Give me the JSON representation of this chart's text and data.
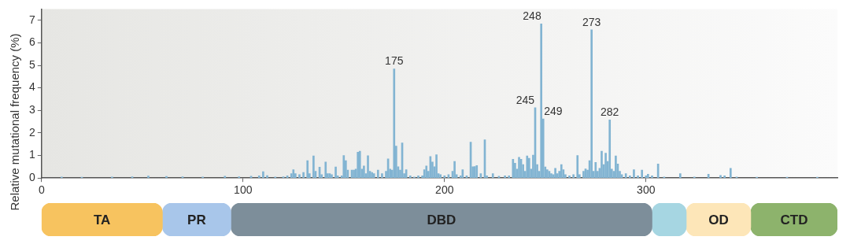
{
  "chart_data": [
    {
      "type": "bar",
      "ylabel": "Relative mutational frequency (%)",
      "x": [
        10,
        20,
        35,
        45,
        53,
        62,
        70,
        80,
        91,
        98,
        104,
        108,
        110,
        112,
        116,
        120,
        122,
        124,
        125,
        126,
        128,
        130,
        132,
        133,
        135,
        136,
        138,
        139,
        141,
        142,
        143,
        144,
        146,
        147,
        149,
        150,
        151,
        152,
        154,
        155,
        156,
        157,
        158,
        159,
        160,
        161,
        162,
        163,
        164,
        165,
        167,
        169,
        171,
        172,
        173,
        174,
        175,
        176,
        177,
        178,
        179,
        180,
        181,
        183,
        185,
        187,
        189,
        190,
        191,
        192,
        193,
        194,
        195,
        196,
        197,
        198,
        200,
        202,
        204,
        205,
        206,
        208,
        209,
        211,
        213,
        214,
        215,
        216,
        218,
        220,
        221,
        224,
        227,
        230,
        232,
        234,
        235,
        236,
        237,
        238,
        239,
        240,
        241,
        242,
        243,
        244,
        245,
        246,
        247,
        248,
        249,
        250,
        251,
        252,
        253,
        254,
        255,
        256,
        257,
        258,
        259,
        260,
        262,
        264,
        266,
        267,
        269,
        270,
        271,
        272,
        273,
        274,
        275,
        276,
        277,
        278,
        279,
        280,
        281,
        282,
        283,
        284,
        285,
        286,
        287,
        288,
        290,
        292,
        294,
        296,
        298,
        300,
        301,
        303,
        306,
        309,
        317,
        324,
        331,
        337,
        339,
        342,
        345,
        355,
        370,
        385
      ],
      "values": [
        0.05,
        0.04,
        0.05,
        0.06,
        0.09,
        0.07,
        0.06,
        0.05,
        0.08,
        0.06,
        0.08,
        0.1,
        0.28,
        0.11,
        0.05,
        0.06,
        0.1,
        0.2,
        0.37,
        0.2,
        0.15,
        0.25,
        0.77,
        0.2,
        0.98,
        0.3,
        0.48,
        0.15,
        0.71,
        0.2,
        0.2,
        0.15,
        0.49,
        0.1,
        0.1,
        1.0,
        0.77,
        0.35,
        0.35,
        0.35,
        0.4,
        1.15,
        1.19,
        0.4,
        0.54,
        0.2,
        0.99,
        0.3,
        0.25,
        0.2,
        0.35,
        0.2,
        0.3,
        0.85,
        0.4,
        0.35,
        4.84,
        1.42,
        0.5,
        0.35,
        1.56,
        0.2,
        0.37,
        0.1,
        0.05,
        0.1,
        0.1,
        0.37,
        0.54,
        0.3,
        0.96,
        0.71,
        0.5,
        1.03,
        0.2,
        0.15,
        0.1,
        0.15,
        0.3,
        0.74,
        0.15,
        0.1,
        0.37,
        0.1,
        1.59,
        0.5,
        0.51,
        0.55,
        0.2,
        1.7,
        0.1,
        0.2,
        0.08,
        0.1,
        0.1,
        0.83,
        0.66,
        0.4,
        0.92,
        0.83,
        0.6,
        0.3,
        0.98,
        0.88,
        0.4,
        1.02,
        3.12,
        0.6,
        0.3,
        6.84,
        2.62,
        0.49,
        0.37,
        0.3,
        0.2,
        0.15,
        0.43,
        0.2,
        0.3,
        0.6,
        0.37,
        0.15,
        0.1,
        0.15,
        1.0,
        0.15,
        0.3,
        0.41,
        0.35,
        0.77,
        6.58,
        0.3,
        0.69,
        0.3,
        0.43,
        1.19,
        0.6,
        1.1,
        0.74,
        2.58,
        0.4,
        0.3,
        0.98,
        0.62,
        0.3,
        0.15,
        0.2,
        0.1,
        0.37,
        0.1,
        0.35,
        0.1,
        0.17,
        0.1,
        0.62,
        0.05,
        0.2,
        0.05,
        0.17,
        0.12,
        0.1,
        0.43,
        0.05,
        0.04,
        0.04,
        0.04
      ],
      "color": "#82b4d2",
      "xlim": [
        0,
        395
      ],
      "xticks": [
        0,
        100,
        200,
        300
      ],
      "ylim": [
        0,
        7.5
      ],
      "yticks": [
        0,
        1,
        2,
        3,
        4,
        5,
        6,
        7
      ],
      "grid": false,
      "legend": false,
      "annotations": [
        {
          "text": "175",
          "x": 175,
          "y": 4.84
        },
        {
          "text": "248",
          "x": 248,
          "y": 6.84
        },
        {
          "text": "273",
          "x": 273,
          "y": 6.58
        },
        {
          "text": "245",
          "x": 245,
          "y": 3.12
        },
        {
          "text": "249",
          "x": 249,
          "y": 2.62
        },
        {
          "text": "282",
          "x": 282,
          "y": 2.58
        }
      ]
    },
    {
      "type": "bar",
      "orientation": "horizontal",
      "stacked": true,
      "categories": [
        null
      ],
      "xlim": [
        0,
        395
      ],
      "xticks": [
        0,
        100,
        200,
        300
      ],
      "tick_labels": false,
      "series": [
        {
          "name": "TA",
          "color": "#f7c35f",
          "values": [
            60
          ]
        },
        {
          "name": "PR",
          "color": "#a8c6ea",
          "values": [
            34
          ]
        },
        {
          "name": "DBD",
          "color": "#7d8e9a",
          "values": [
            209
          ]
        },
        {
          "color": "#a6d6e2",
          "values": [
            17
          ]
        },
        {
          "name": "OD",
          "color": "#fde6b8",
          "values": [
            32
          ]
        },
        {
          "name": "CTD",
          "color": "#8db36c",
          "values": [
            43
          ]
        }
      ]
    }
  ]
}
